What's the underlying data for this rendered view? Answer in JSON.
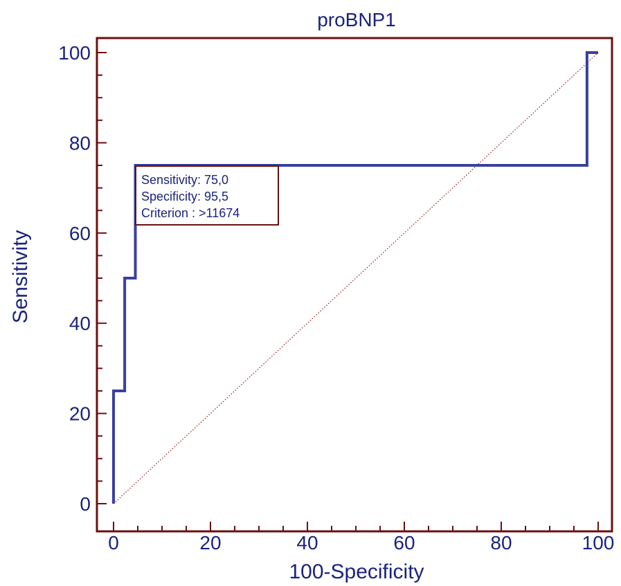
{
  "chart_data": {
    "type": "line",
    "title": "proBNP1",
    "xlabel": "100-Specificity",
    "ylabel": "Sensitivity",
    "xlim": [
      0,
      100
    ],
    "ylim": [
      0,
      100
    ],
    "xticks": [
      0,
      20,
      40,
      60,
      80,
      100
    ],
    "yticks": [
      0,
      20,
      40,
      60,
      80,
      100
    ],
    "series": [
      {
        "x": [
          0,
          0,
          2.3,
          2.3,
          4.5,
          4.5,
          97.7,
          97.7,
          100
        ],
        "y": [
          0,
          25,
          25,
          50,
          50,
          75,
          75,
          100,
          100
        ],
        "color": "#3a3f9e",
        "style": "step"
      },
      {
        "x": [
          0,
          100
        ],
        "y": [
          0,
          100
        ],
        "color": "#8b1a1a",
        "style": "dotted"
      }
    ],
    "annotation": {
      "lines": [
        "Sensitivity: 75,0",
        "Specificity: 95,5",
        "Criterion : >11674"
      ]
    },
    "colors": {
      "frame": "#6b0f0f",
      "text": "#1a237e"
    }
  }
}
